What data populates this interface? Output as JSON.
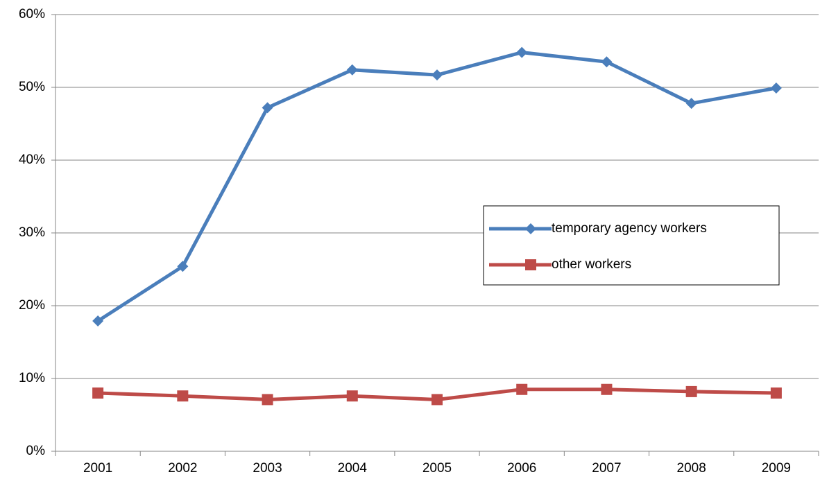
{
  "chart_data": {
    "type": "line",
    "categories": [
      "2001",
      "2002",
      "2003",
      "2004",
      "2005",
      "2006",
      "2007",
      "2008",
      "2009"
    ],
    "series": [
      {
        "name": "temporary agency workers",
        "color": "#4a7ebb",
        "marker": "diamond",
        "values": [
          17.9,
          25.4,
          47.2,
          52.4,
          51.7,
          54.8,
          53.5,
          47.8,
          49.9
        ]
      },
      {
        "name": "other workers",
        "color": "#be4b48",
        "marker": "square",
        "values": [
          8.0,
          7.6,
          7.1,
          7.6,
          7.1,
          8.5,
          8.5,
          8.2,
          8.0
        ]
      }
    ],
    "ylim": [
      0,
      60
    ],
    "yticks": [
      {
        "value": 0,
        "label": "0%"
      },
      {
        "value": 10,
        "label": "10%"
      },
      {
        "value": 20,
        "label": "20%"
      },
      {
        "value": 30,
        "label": "30%"
      },
      {
        "value": 40,
        "label": "40%"
      },
      {
        "value": 50,
        "label": "50%"
      },
      {
        "value": 60,
        "label": "60%"
      }
    ],
    "grid": true,
    "legend_position": "right"
  }
}
